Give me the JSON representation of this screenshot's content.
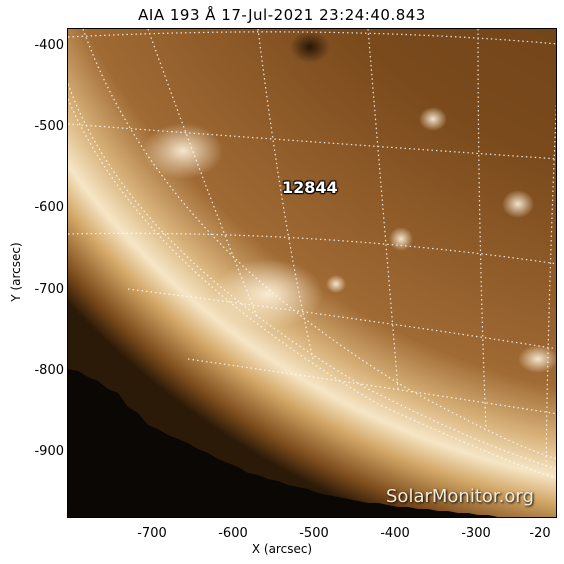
{
  "title": "AIA 193 Å 17-Jul-2021 23:24:40.843",
  "axes": {
    "xlabel": "X (arcsec)",
    "ylabel": "Y (arcsec)",
    "xticks": [
      "-700",
      "-600",
      "-500",
      "-400",
      "-300",
      "-20"
    ],
    "yticks": [
      "-400",
      "-500",
      "-600",
      "-700",
      "-800",
      "-900"
    ]
  },
  "region_label": "12844",
  "watermark": "SolarMonitor.org",
  "colors": {
    "corona_dark": "#5a3510",
    "corona_mid": "#9b6530",
    "limb_bright": "#f6e4c2",
    "space": "#0a0705",
    "grid": "#ffffff"
  }
}
